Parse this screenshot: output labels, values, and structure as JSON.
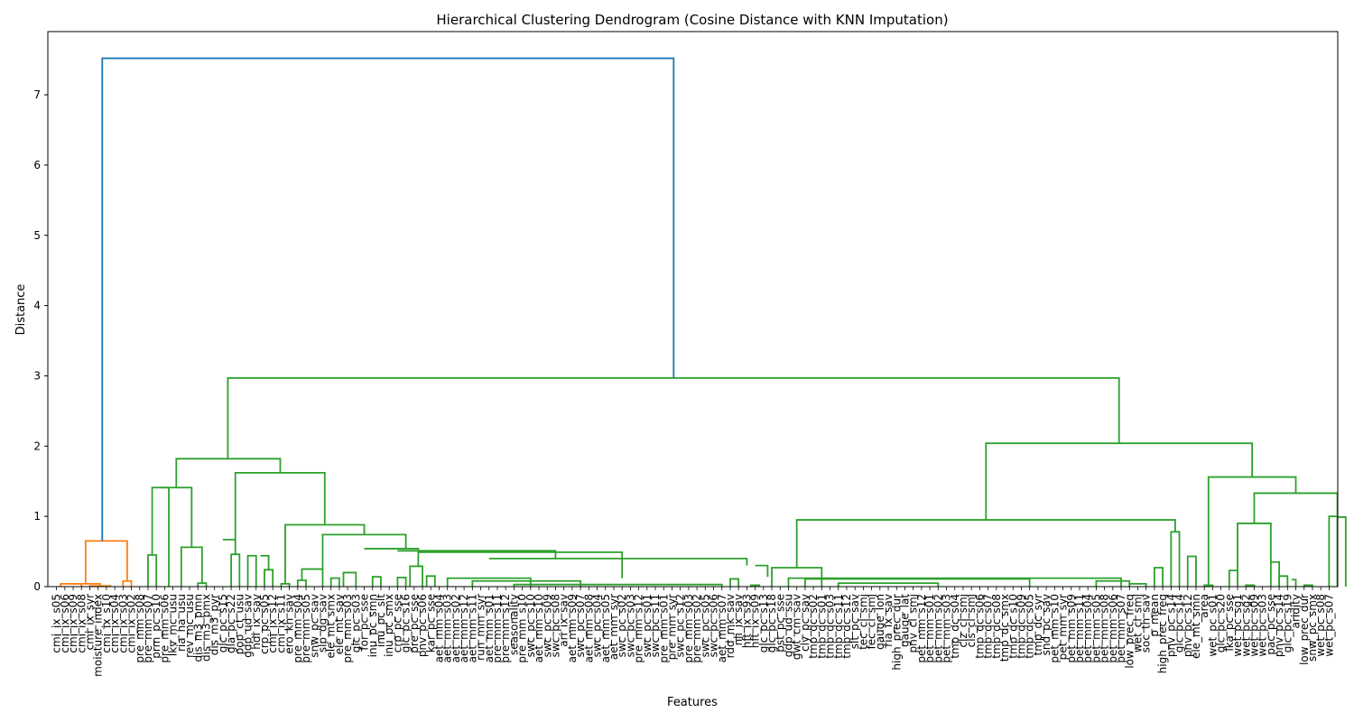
{
  "chart_data": {
    "type": "dendrogram",
    "title": "Hierarchical Clustering Dendrogram (Cosine Distance with KNN Imputation)",
    "xlabel": "Features",
    "ylabel": "Distance",
    "ylim": [
      0,
      7.9
    ],
    "yticks": [
      0,
      1,
      2,
      3,
      4,
      5,
      6,
      7
    ],
    "grid": false,
    "colors": {
      "root": "#1f77b4",
      "cluster_1": "#ff7f0e",
      "cluster_2": "#2ca02c",
      "axis": "#000000"
    },
    "leaves": [
      "cmi_ix_s05",
      "cmi_ix_s06",
      "cmi_ix_s09",
      "cmi_ix_s08",
      "cmi_ix_syr",
      "moisture_index",
      "cmi_ix_s10",
      "cmi_ix_s04",
      "cmi_ix_s03",
      "cmi_ix_s02",
      "pre_mm_s08",
      "pre_mm_s07",
      "prm_pc_s10",
      "pre_mm_s06",
      "lkv_mc_usu",
      "ria_ha_usu",
      "rev_mc_usu",
      "dis_m3_pmn",
      "dis_m3_pmx",
      "dis_m3_pyr",
      "glc_pc_s15",
      "gla_pc_s22",
      "pop_ct_usu",
      "gdp_ud_sav",
      "hdi_ix_sav",
      "crp_pc_s05",
      "cmi_ix_s12",
      "cmi_ix_s11",
      "ero_kh_sav",
      "pre_mm_s04",
      "pre_mm_s05",
      "snw_pc_sav",
      "slp_dg_sav",
      "ele_mt_smx",
      "ele_mt_sav",
      "pre_mm_s03",
      "glc_pc_s03",
      "for_pc_sse",
      "inu_pc_smn",
      "inu_pc_slt",
      "inu_pc_smx",
      "crp_pc_sse",
      "glc_pc_s16",
      "pre_pc_sse",
      "pnv_pc_s06",
      "kar_pc_sse",
      "aet_mm_s04",
      "aet_mm_s03",
      "aet_mm_s02",
      "aet_mm_s12",
      "aet_mm_s11",
      "run_mm_syr",
      "aet_mm_s01",
      "pre_mm_s11",
      "pre_mm_s12",
      "seasonality",
      "pre_mm_s10",
      "swc_pc_s10",
      "aet_mm_s10",
      "swc_pc_s09",
      "swc_pc_s08",
      "ari_ix_sav",
      "aet_mm_s09",
      "swc_pc_s07",
      "aet_mm_s08",
      "swc_pc_s04",
      "aet_mm_s05",
      "aet_mm_syr",
      "swc_pc_s02",
      "swc_pc_s03",
      "pre_mm_s12",
      "swc_pc_s01",
      "swc_pc_s11",
      "pre_mm_s01",
      "pre_mm_syr",
      "swc_pc_s12",
      "pre_mm_s03",
      "pre_mm_s02",
      "swc_pc_s05",
      "swc_pc_s06",
      "aet_mm_s07",
      "rdd_mk_sav",
      "nli_ix_sav",
      "hft_ix_s93",
      "hft_ix_s09",
      "glc_pc_s13",
      "glc_pc_s18",
      "pst_pc_sse",
      "gdp_ud_ssu",
      "gwt_cm_sav",
      "cly_pc_sav",
      "tmp_dc_s02",
      "tmp_dc_s01",
      "tmp_dc_s03",
      "tmp_dc_s11",
      "tmp_dc_s12",
      "slt_pc_sav",
      "tec_cl_smj",
      "fec_cl_smj",
      "gauge_lon",
      "ria_ix_sav",
      "high_prec_dur",
      "gauge_lat",
      "pnv_cl_smj",
      "pet_mm_s12",
      "pet_mm_s01",
      "pet_mm_s02",
      "pet_mm_s03",
      "tmp_dc_s04",
      "clz_cl_smj",
      "cls_cl_smj",
      "tmp_dc_s06",
      "tmp_dc_s07",
      "tmp_dc_s08",
      "tmp_dc_smx",
      "tmp_dc_s10",
      "tmp_dc_s09",
      "tmp_dc_s05",
      "tmp_dc_syr",
      "snd_pc_sav",
      "pet_mm_s10",
      "pet_mm_syr",
      "pet_mm_s09",
      "pet_mm_s11",
      "pet_mm_s04",
      "pet_mm_s05",
      "pet_mm_s08",
      "pet_mm_s06",
      "pet_mm_s07",
      "low_prec_freq",
      "wet_cl_smj",
      "soc_th_sav",
      "p_mean",
      "high_prec_freq",
      "pnv_pc_s14",
      "glc_pc_s14",
      "pnv_pc_s12",
      "ele_mt_smn",
      "area",
      "wet_pc_s01",
      "glc_pc_s20",
      "lka_pc_sse",
      "wet_pc_sg1",
      "wet_pc_sg2",
      "wet_pc_s09",
      "wet_pc_s03",
      "pac_pc_sse",
      "pnv_pc_s14",
      "glc_pc_s19",
      "aridity",
      "low_prec_dur",
      "snw_pc_smx",
      "wet_pc_s08",
      "wet_pc_s07"
    ],
    "links": [
      {
        "color": "cluster_1",
        "xl": 0.5,
        "xr": 3,
        "yl": 0,
        "yr": 0,
        "y": 0.04
      },
      {
        "color": "cluster_1",
        "xl": 4,
        "xr": 6.5,
        "yl": 0,
        "yr": 0,
        "y": 0.01
      },
      {
        "color": "cluster_1",
        "xl": 1.75,
        "xr": 5.25,
        "yl": 0.04,
        "yr": 0.01,
        "y": 0.04
      },
      {
        "color": "cluster_1",
        "xl": 8,
        "xr": 9,
        "yl": 0,
        "yr": 0,
        "y": 0.08
      },
      {
        "color": "cluster_1",
        "xl": 3.5,
        "xr": 8.5,
        "yl": 0.04,
        "yr": 0.08,
        "y": 0.65
      },
      {
        "color": "cluster_2",
        "xl": 11,
        "xr": 12,
        "yl": 0,
        "yr": 0,
        "y": 0.45
      },
      {
        "color": "cluster_2",
        "xl": 11.5,
        "xr": 13.5,
        "yl": 0.45,
        "yr": 0,
        "y": 1.41
      },
      {
        "color": "cluster_2",
        "xl": 17,
        "xr": 18,
        "yl": 0,
        "yr": 0,
        "y": 0.05
      },
      {
        "color": "cluster_2",
        "xl": 15,
        "xr": 17.5,
        "yl": 0,
        "yr": 0.05,
        "y": 0.56
      },
      {
        "color": "cluster_2",
        "xl": 12.5,
        "xr": 16.25,
        "yl": 1.41,
        "yr": 0.56,
        "y": 1.41
      },
      {
        "color": "cluster_2",
        "xl": 21,
        "xr": 22,
        "yl": 0,
        "yr": 0,
        "y": 0.46
      },
      {
        "color": "cluster_2",
        "xl": 23,
        "xr": 24,
        "yl": 0,
        "yr": 0,
        "y": 0.44
      },
      {
        "color": "cluster_2",
        "xl": 25,
        "xr": 26,
        "yl": 0,
        "yr": 0,
        "y": 0.24
      },
      {
        "color": "cluster_2",
        "xl": 24.5,
        "xr": 25.5,
        "yl": 0.44,
        "yr": 0.24,
        "y": 0.44
      },
      {
        "color": "cluster_2",
        "xl": 20,
        "xr": 21.5,
        "yl": 0.67,
        "yr": 0.46,
        "y": 0.67
      },
      {
        "color": "cluster_2",
        "xl": 27,
        "xr": 28,
        "yl": 0,
        "yr": 0,
        "y": 0.04
      },
      {
        "color": "cluster_2",
        "xl": 29,
        "xr": 30,
        "yl": 0,
        "yr": 0,
        "y": 0.09
      },
      {
        "color": "cluster_2",
        "xl": 29.5,
        "xr": 32,
        "yl": 0.09,
        "yr": 0,
        "y": 0.25
      },
      {
        "color": "cluster_2",
        "xl": 33,
        "xr": 34,
        "yl": 0,
        "yr": 0,
        "y": 0.12
      },
      {
        "color": "cluster_2",
        "xl": 34.5,
        "xr": 36,
        "yl": 0,
        "yr": 0,
        "y": 0.2
      },
      {
        "color": "cluster_2",
        "xl": 38,
        "xr": 39,
        "yl": 0,
        "yr": 0,
        "y": 0.14
      },
      {
        "color": "cluster_2",
        "xl": 41,
        "xr": 42,
        "yl": 0,
        "yr": 0,
        "y": 0.13
      },
      {
        "color": "cluster_2",
        "xl": 42.5,
        "xr": 44,
        "yl": 0,
        "yr": 0,
        "y": 0.29
      },
      {
        "color": "cluster_2",
        "xl": 44.5,
        "xr": 45.5,
        "yl": 0,
        "yr": 0,
        "y": 0.15
      },
      {
        "color": "cluster_2",
        "xl": 47,
        "xr": 57,
        "yl": 0,
        "yr": 0,
        "y": 0.12
      },
      {
        "color": "cluster_2",
        "xl": 50,
        "xr": 63,
        "yl": 0,
        "yr": 0,
        "y": 0.08
      },
      {
        "color": "cluster_2",
        "xl": 55,
        "xr": 80,
        "yl": 0,
        "yr": 0,
        "y": 0.03
      },
      {
        "color": "cluster_2",
        "xl": 43.5,
        "xr": 68,
        "yl": 0.29,
        "yr": 0.12,
        "y": 0.49
      },
      {
        "color": "cluster_2",
        "xl": 37,
        "xr": 43.5,
        "yl": 0.54,
        "yr": 0.49,
        "y": 0.54
      },
      {
        "color": "cluster_2",
        "xl": 41,
        "xr": 60,
        "yl": 0.51,
        "yr": 0.4,
        "y": 0.51
      },
      {
        "color": "cluster_2",
        "xl": 52,
        "xr": 83,
        "yl": 0.4,
        "yr": 0.3,
        "y": 0.4
      },
      {
        "color": "cluster_2",
        "xl": 32,
        "xr": 42,
        "yl": 0.25,
        "yr": 0.54,
        "y": 0.74
      },
      {
        "color": "cluster_2",
        "xl": 27.5,
        "xr": 37,
        "yl": 0.04,
        "yr": 0.74,
        "y": 0.88
      },
      {
        "color": "cluster_2",
        "xl": 21.5,
        "xr": 32.25,
        "yl": 0.67,
        "yr": 0.88,
        "y": 1.62
      },
      {
        "color": "cluster_2",
        "xl": 14.4,
        "xr": 26.9,
        "yl": 1.41,
        "yr": 1.62,
        "y": 1.82
      },
      {
        "color": "cluster_2",
        "xl": 81,
        "xr": 82,
        "yl": 0,
        "yr": 0,
        "y": 0.11
      },
      {
        "color": "cluster_2",
        "xl": 83.5,
        "xr": 84.5,
        "yl": 0,
        "yr": 0,
        "y": 0.02
      },
      {
        "color": "cluster_2",
        "xl": 84,
        "xr": 85.5,
        "yl": 0.3,
        "yr": 0.14,
        "y": 0.3
      },
      {
        "color": "cluster_2",
        "xl": 86,
        "xr": 92,
        "yl": 0,
        "yr": 0,
        "y": 0.27
      },
      {
        "color": "cluster_2",
        "xl": 88,
        "xr": 128,
        "yl": 0,
        "yr": 0,
        "y": 0.12
      },
      {
        "color": "cluster_2",
        "xl": 90,
        "xr": 117,
        "yl": 0,
        "yr": 0,
        "y": 0.11
      },
      {
        "color": "cluster_2",
        "xl": 94,
        "xr": 106,
        "yl": 0,
        "yr": 0,
        "y": 0.05
      },
      {
        "color": "cluster_2",
        "xl": 125,
        "xr": 129,
        "yl": 0,
        "yr": 0,
        "y": 0.08
      },
      {
        "color": "cluster_2",
        "xl": 129,
        "xr": 131,
        "yl": 0,
        "yr": 0,
        "y": 0.04
      },
      {
        "color": "cluster_2",
        "xl": 132,
        "xr": 133,
        "yl": 0,
        "yr": 0,
        "y": 0.27
      },
      {
        "color": "cluster_2",
        "xl": 134,
        "xr": 135,
        "yl": 0,
        "yr": 0,
        "y": 0.78
      },
      {
        "color": "cluster_2",
        "xl": 136,
        "xr": 137,
        "yl": 0,
        "yr": 0,
        "y": 0.43
      },
      {
        "color": "cluster_2",
        "xl": 89,
        "xr": 134.5,
        "yl": 0.27,
        "yr": 0.78,
        "y": 0.95
      },
      {
        "color": "cluster_2",
        "xl": 138,
        "xr": 139,
        "yl": 0,
        "yr": 0,
        "y": 0.02
      },
      {
        "color": "cluster_2",
        "xl": 141,
        "xr": 142,
        "yl": 0,
        "yr": 0,
        "y": 0.23
      },
      {
        "color": "cluster_2",
        "xl": 143,
        "xr": 144,
        "yl": 0,
        "yr": 0,
        "y": 0.02
      },
      {
        "color": "cluster_2",
        "xl": 142,
        "xr": 146,
        "yl": 0.23,
        "yr": 0.35,
        "y": 0.9
      },
      {
        "color": "cluster_2",
        "xl": 146,
        "xr": 147,
        "yl": 0,
        "yr": 0,
        "y": 0.35
      },
      {
        "color": "cluster_2",
        "xl": 147,
        "xr": 148,
        "yl": 0,
        "yr": 0,
        "y": 0.15
      },
      {
        "color": "cluster_2",
        "xl": 148.5,
        "xr": 149,
        "yl": 0.1,
        "yr": 0,
        "y": 0.1
      },
      {
        "color": "cluster_2",
        "xl": 150,
        "xr": 151,
        "yl": 0,
        "yr": 0,
        "y": 0.02
      },
      {
        "color": "cluster_2",
        "xl": 153,
        "xr": 154,
        "yl": 0,
        "yr": 0,
        "y": 1.0
      },
      {
        "color": "cluster_2",
        "xl": 154,
        "xr": 155,
        "yl": 0,
        "yr": 0,
        "y": 0.99
      },
      {
        "color": "cluster_2",
        "xl": 144,
        "xr": 154,
        "yl": 0.9,
        "yr": 1.0,
        "y": 1.33
      },
      {
        "color": "cluster_2",
        "xl": 138.5,
        "xr": 149,
        "yl": 0,
        "yr": 1.33,
        "y": 1.56
      },
      {
        "color": "cluster_2",
        "xl": 111.75,
        "xr": 143.75,
        "yl": 0.95,
        "yr": 1.56,
        "y": 2.04
      },
      {
        "color": "cluster_2",
        "xl": 20.6,
        "xr": 127.75,
        "yl": 1.82,
        "yr": 2.04,
        "y": 2.97
      },
      {
        "color": "root",
        "xl": 5.5,
        "xr": 74.2,
        "yl": 0.65,
        "yr": 2.97,
        "y": 7.52
      }
    ]
  }
}
